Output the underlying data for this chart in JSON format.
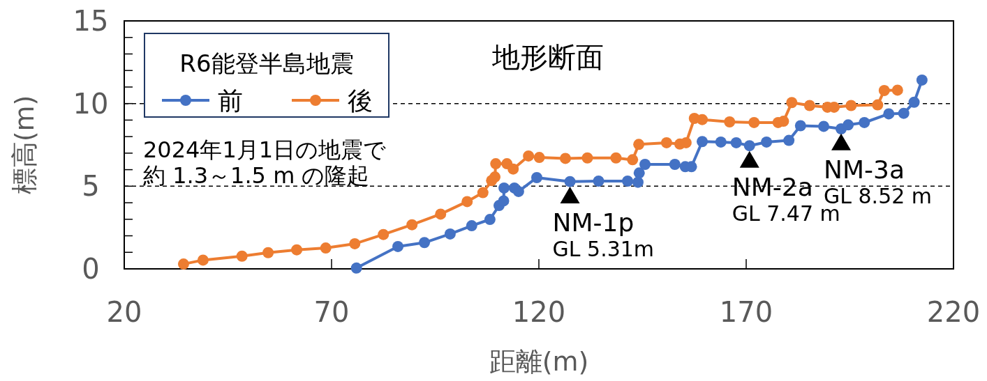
{
  "chart_data": {
    "type": "line",
    "title": "地形断面",
    "xlabel": "距離(m)",
    "ylabel": "標高(m)",
    "legend_title": "R6能登半島地震",
    "legend": "top left",
    "grid": "y",
    "marker": "circle",
    "line_style": "solid",
    "xlim": [
      20,
      220
    ],
    "ylim": [
      0,
      15
    ],
    "xticks": [
      20,
      70,
      120,
      170,
      220
    ],
    "yticks": [
      0,
      {
        "value": 1,
        "label": null
      },
      {
        "value": 2,
        "label": null
      },
      {
        "value": 3,
        "label": null
      },
      {
        "value": 4,
        "label": null
      },
      5,
      {
        "value": 6,
        "label": null
      },
      {
        "value": 7,
        "label": null
      },
      {
        "value": 8,
        "label": null
      },
      {
        "value": 9,
        "label": null
      },
      10,
      {
        "value": 11,
        "label": null
      },
      {
        "value": 12,
        "label": null
      },
      {
        "value": 13,
        "label": null
      },
      {
        "value": 14,
        "label": null
      },
      15
    ],
    "series": [
      {
        "name": "前",
        "color": "#4472c4",
        "x": [
          76.0,
          86.0,
          92.4,
          98.6,
          103.8,
          108.2,
          110.4,
          111.5,
          111.6,
          114.1,
          115.1,
          119.5,
          127.5,
          134.4,
          141.4,
          143.9,
          144.2,
          145.6,
          152.8,
          155.3,
          156.8,
          159.4,
          163.9,
          167.6,
          170.8,
          174.9,
          180.3,
          183.1,
          188.7,
          192.9,
          194.6,
          198.5,
          204.4,
          208.0,
          210.5,
          212.4
        ],
        "values": [
          0.05,
          1.35,
          1.59,
          2.11,
          2.61,
          2.99,
          3.83,
          4.11,
          4.89,
          4.89,
          4.68,
          5.52,
          5.28,
          5.31,
          5.31,
          5.24,
          5.8,
          6.32,
          6.32,
          6.18,
          6.18,
          7.7,
          7.67,
          7.63,
          7.45,
          7.67,
          7.77,
          8.66,
          8.62,
          8.47,
          8.71,
          8.85,
          9.38,
          9.41,
          10.08,
          11.42
        ]
      },
      {
        "name": "後",
        "color": "#ed7d31",
        "x": [
          34.3,
          39.0,
          48.4,
          54.7,
          61.6,
          68.6,
          75.6,
          82.5,
          89.4,
          96.3,
          102.7,
          106.5,
          108.6,
          109.4,
          109.6,
          112.3,
          113.8,
          117.5,
          120.1,
          126.4,
          131.7,
          138.6,
          142.6,
          144.1,
          150.8,
          154.0,
          155.5,
          157.5,
          159.4,
          166.0,
          171.9,
          177.7,
          179.0,
          181.0,
          185.3,
          189.6,
          191.2,
          195.3,
          201.7,
          203.3,
          206.5
        ],
        "values": [
          0.29,
          0.53,
          0.77,
          0.98,
          1.15,
          1.26,
          1.52,
          2.08,
          2.67,
          3.31,
          4.07,
          4.61,
          5.34,
          5.56,
          6.36,
          6.36,
          6.04,
          6.83,
          6.74,
          6.68,
          6.71,
          6.71,
          6.6,
          7.53,
          7.63,
          7.55,
          7.63,
          9.1,
          9.03,
          8.89,
          8.85,
          8.85,
          8.93,
          10.06,
          9.88,
          9.78,
          9.78,
          9.88,
          9.92,
          10.79,
          10.81
        ]
      }
    ],
    "annotations": [
      "2024年1月1日の地震で",
      "約 1.3～1.5 m の隆起",
      {
        "text": "NM-1p",
        "x": 127.5,
        "y": 5.31
      },
      {
        "text": "GL 5.31m",
        "x": 127.5,
        "y": 5.31
      },
      {
        "text": "NM-2a",
        "x": 170.8,
        "y": 7.47
      },
      {
        "text": "GL 7.47 m",
        "x": 170.8,
        "y": 7.47
      },
      {
        "text": "NM-3a",
        "x": 192.9,
        "y": 8.52
      },
      {
        "text": "GL 8.52 m",
        "x": 192.9,
        "y": 8.52
      }
    ]
  }
}
